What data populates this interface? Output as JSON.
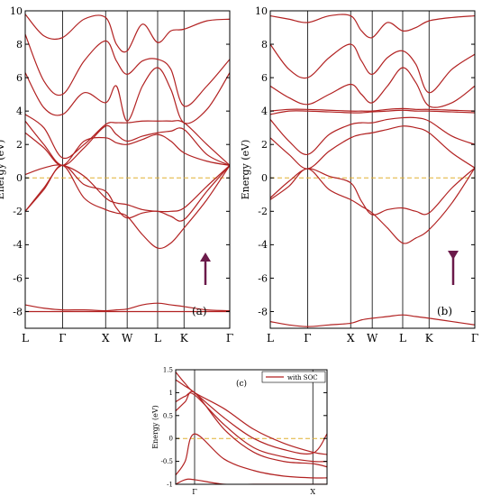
{
  "colors": {
    "band": "#b22222",
    "fermi": "#e0b030",
    "arrow": "#6b1a4a",
    "frame": "#000000",
    "shade": "#f4d6d6"
  },
  "chart_data": [
    {
      "type": "line",
      "panel_label": "(a)",
      "ylabel": "Energy (eV)",
      "ylim": [
        -9,
        10
      ],
      "yticks": [
        -8,
        -6,
        -4,
        -2,
        0,
        2,
        4,
        6,
        8,
        10
      ],
      "ytick_labels": [
        "-8",
        "-6",
        "-4",
        "-2",
        "0",
        "2",
        "4",
        "6",
        "8",
        "10"
      ],
      "kpath": [
        {
          "label": "L",
          "x": 0
        },
        {
          "label": "Γ",
          "x": 0.866
        },
        {
          "label": "X",
          "x": 1.866
        },
        {
          "label": "W",
          "x": 2.366
        },
        {
          "label": "L",
          "x": 3.073
        },
        {
          "label": "K",
          "x": 3.685
        },
        {
          "label": "Γ",
          "x": 4.746
        }
      ],
      "fermi_level": 0,
      "spin_arrow": "up",
      "x": [
        0,
        0.433,
        0.866,
        1.366,
        1.866,
        2.116,
        2.366,
        2.72,
        3.073,
        3.379,
        3.685,
        4.216,
        4.746
      ],
      "series": [
        {
          "values": [
            -7.6,
            -7.8,
            -7.9,
            -7.9,
            -7.95,
            -7.9,
            -7.85,
            -7.6,
            -7.5,
            -7.6,
            -7.7,
            -7.9,
            -7.95
          ]
        },
        {
          "values": [
            -8.0,
            -8.0,
            -8.0,
            -8.0,
            -8.0,
            -8.0,
            -8.0,
            -8.0,
            -8.0,
            -8.0,
            -8.0,
            -8.0,
            -8.0
          ]
        },
        {
          "values": [
            -2.0,
            -0.7,
            0.75,
            -1.2,
            -1.9,
            -2.1,
            -2.3,
            -3.4,
            -4.2,
            -3.9,
            -3.0,
            -1.3,
            0.75
          ]
        },
        {
          "values": [
            -2.0,
            -0.6,
            0.75,
            -0.4,
            -0.8,
            -1.8,
            -2.4,
            -2.1,
            -2.0,
            -2.3,
            -2.5,
            -0.8,
            0.75
          ]
        },
        {
          "values": [
            0.2,
            0.6,
            0.75,
            0.1,
            -1.2,
            -1.5,
            -1.6,
            -1.9,
            -2.0,
            -2.0,
            -1.8,
            -0.5,
            0.75
          ]
        },
        {
          "values": [
            2.7,
            1.8,
            0.75,
            2.2,
            2.4,
            2.1,
            2.0,
            2.3,
            2.6,
            2.2,
            1.5,
            1.0,
            0.75
          ]
        },
        {
          "values": [
            3.4,
            2.0,
            0.75,
            1.8,
            3.1,
            2.6,
            2.2,
            2.5,
            2.7,
            2.8,
            2.9,
            1.4,
            0.75
          ]
        },
        {
          "values": [
            3.8,
            3.0,
            1.2,
            2.0,
            3.2,
            3.3,
            3.3,
            3.4,
            3.4,
            3.4,
            3.3,
            2.0,
            0.75
          ]
        },
        {
          "values": [
            6.3,
            4.2,
            3.8,
            5.1,
            4.5,
            5.5,
            3.4,
            5.5,
            6.6,
            5.3,
            3.3,
            4.1,
            6.3
          ]
        },
        {
          "values": [
            8.6,
            5.8,
            5.0,
            7.0,
            8.2,
            7.0,
            6.2,
            7.0,
            7.1,
            6.5,
            4.3,
            5.5,
            7.1
          ]
        },
        {
          "values": [
            9.8,
            8.5,
            8.4,
            9.5,
            9.6,
            8.0,
            7.6,
            9.2,
            8.1,
            8.8,
            8.9,
            9.4,
            9.5
          ]
        }
      ]
    },
    {
      "type": "line",
      "panel_label": "(b)",
      "ylabel": "Energy (eV)",
      "ylim": [
        -9,
        10
      ],
      "yticks": [
        -8,
        -6,
        -4,
        -2,
        0,
        2,
        4,
        6,
        8,
        10
      ],
      "ytick_labels": [
        "-8",
        "-6",
        "-4",
        "-2",
        "0",
        "2",
        "4",
        "6",
        "8",
        "10"
      ],
      "kpath": [
        {
          "label": "L",
          "x": 0
        },
        {
          "label": "Γ",
          "x": 0.866
        },
        {
          "label": "X",
          "x": 1.866
        },
        {
          "label": "W",
          "x": 2.366
        },
        {
          "label": "L",
          "x": 3.073
        },
        {
          "label": "K",
          "x": 3.685
        },
        {
          "label": "Γ",
          "x": 4.746
        }
      ],
      "fermi_level": 0,
      "spin_arrow": "down",
      "x": [
        0,
        0.433,
        0.866,
        1.366,
        1.866,
        2.116,
        2.366,
        2.72,
        3.073,
        3.379,
        3.685,
        4.216,
        4.746
      ],
      "series": [
        {
          "values": [
            -8.6,
            -8.8,
            -8.9,
            -8.8,
            -8.7,
            -8.5,
            -8.4,
            -8.3,
            -8.2,
            -8.3,
            -8.4,
            -8.6,
            -8.8
          ]
        },
        {
          "values": [
            -1.3,
            -0.5,
            0.55,
            -0.7,
            -1.3,
            -1.7,
            -2.1,
            -3.0,
            -3.9,
            -3.6,
            -3.1,
            -1.5,
            0.6
          ]
        },
        {
          "values": [
            -1.2,
            -0.2,
            0.55,
            0.1,
            -0.3,
            -1.4,
            -2.2,
            -1.9,
            -1.8,
            -2.0,
            -2.1,
            -0.6,
            0.6
          ]
        },
        {
          "values": [
            2.4,
            1.4,
            0.55,
            1.6,
            2.4,
            2.6,
            2.7,
            2.9,
            3.1,
            3.0,
            2.7,
            1.5,
            0.6
          ]
        },
        {
          "values": [
            3.5,
            2.2,
            1.4,
            2.6,
            3.2,
            3.3,
            3.3,
            3.5,
            3.6,
            3.6,
            3.4,
            2.5,
            2.0
          ]
        },
        {
          "values": [
            4.0,
            4.1,
            4.1,
            4.05,
            4.0,
            4.0,
            4.0,
            4.1,
            4.15,
            4.1,
            4.1,
            4.05,
            4.0
          ]
        },
        {
          "values": [
            3.8,
            4.0,
            4.0,
            3.95,
            3.9,
            3.9,
            3.95,
            4.0,
            4.05,
            4.0,
            4.0,
            3.95,
            3.9
          ]
        },
        {
          "values": [
            5.5,
            4.8,
            4.4,
            5.0,
            5.6,
            5.0,
            4.5,
            5.5,
            6.6,
            5.7,
            4.3,
            4.5,
            5.5
          ]
        },
        {
          "values": [
            8.0,
            6.5,
            6.0,
            7.2,
            8.0,
            7.0,
            6.2,
            7.2,
            7.6,
            6.8,
            5.1,
            6.5,
            7.4
          ]
        },
        {
          "values": [
            9.7,
            9.5,
            9.3,
            9.7,
            9.7,
            8.8,
            8.4,
            9.3,
            8.8,
            9.0,
            9.4,
            9.6,
            9.7
          ]
        }
      ]
    },
    {
      "type": "line",
      "panel_label": "(c)",
      "ylabel": "Energy (eV)",
      "ylim": [
        -1,
        1.5
      ],
      "yticks": [
        -1,
        -0.5,
        0,
        0.5,
        1,
        1.5
      ],
      "ytick_labels": [
        "-1",
        "-0.5",
        "0",
        "0.5",
        "1",
        "1.5"
      ],
      "kpath": [
        {
          "label": "Γ",
          "x": 0
        },
        {
          "label": "X",
          "x": 1
        }
      ],
      "xlim": [
        -0.16,
        1.12
      ],
      "fermi_level": 0,
      "legend": {
        "label": "with SOC",
        "position": "top-right"
      },
      "x": [
        -0.16,
        -0.08,
        0,
        0.25,
        0.5,
        0.75,
        1.0,
        1.12
      ],
      "series": [
        {
          "values": [
            1.28,
            1.14,
            1.0,
            0.45,
            0.0,
            -0.24,
            -0.32,
            0.1
          ]
        },
        {
          "values": [
            1.45,
            1.2,
            1.0,
            0.65,
            0.2,
            -0.1,
            -0.3,
            -0.35
          ]
        },
        {
          "values": [
            0.6,
            0.8,
            1.0,
            0.2,
            -0.3,
            -0.5,
            -0.55,
            -0.62
          ]
        },
        {
          "values": [
            0.8,
            0.92,
            0.95,
            0.3,
            -0.2,
            -0.4,
            -0.5,
            -0.5
          ]
        },
        {
          "values": [
            -0.8,
            -0.5,
            0.1,
            -0.45,
            -0.7,
            -0.82,
            -0.86,
            -0.86
          ]
        },
        {
          "values": [
            -1.0,
            -0.9,
            -0.9,
            -1.0,
            -1.0,
            -1.0,
            -1.0,
            -1.0
          ]
        }
      ]
    }
  ]
}
